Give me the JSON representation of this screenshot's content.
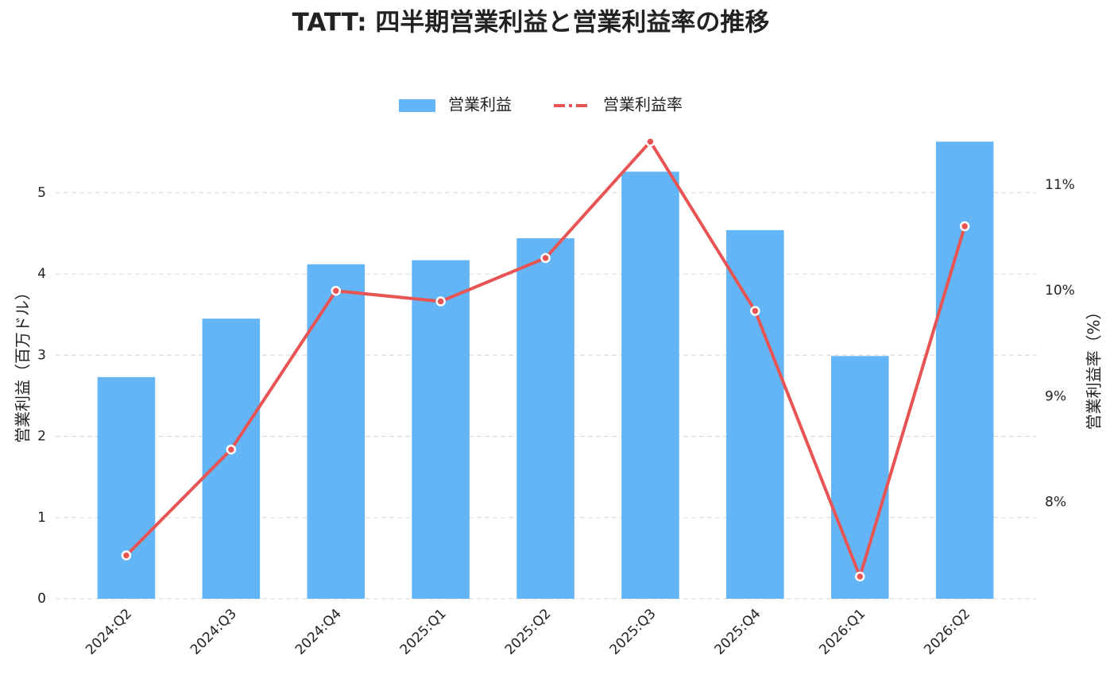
{
  "chart_data": {
    "type": "bar-line",
    "title": "TATT: 四半期営業利益と営業利益率の推移",
    "categories": [
      "2024:Q2",
      "2024:Q3",
      "2024:Q4",
      "2025:Q1",
      "2025:Q2",
      "2025:Q3",
      "2025:Q4",
      "2026:Q1",
      "2026:Q2"
    ],
    "series": [
      {
        "name": "営業利益",
        "type": "bar",
        "color": "#64b5f6",
        "values": [
          2.73,
          3.45,
          4.12,
          4.17,
          4.44,
          5.26,
          4.54,
          2.99,
          5.63
        ]
      },
      {
        "name": "営業利益率",
        "type": "line",
        "axis": "y2",
        "color": "#e85454",
        "values": [
          7.5,
          8.5,
          10.0,
          9.9,
          10.31,
          11.41,
          9.81,
          7.3,
          10.61
        ]
      }
    ],
    "y_label": "営業利益（百万ドル）",
    "y2_label": "営業利益率（%）",
    "ylim": [
      0,
      5.8
    ],
    "yticks": [
      0,
      1,
      2,
      3,
      4,
      5
    ],
    "y2lim": [
      7.09,
      11.54
    ],
    "y2ticks": [
      {
        "value": 8,
        "label": "8%"
      },
      {
        "value": 9,
        "label": "9%"
      },
      {
        "value": 10,
        "label": "10%"
      },
      {
        "value": 11,
        "label": "11%"
      }
    ],
    "grid": true,
    "legend": "top"
  }
}
